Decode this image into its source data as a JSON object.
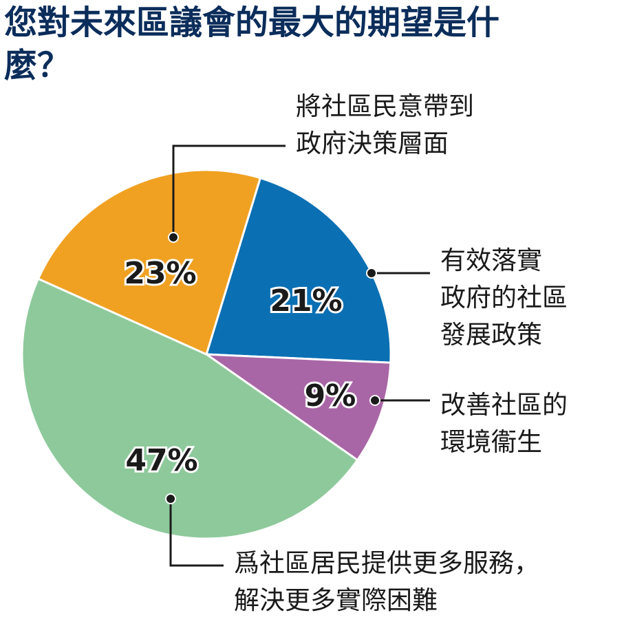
{
  "chart_data": {
    "type": "pie",
    "title": "您對未來區議會的最大的期望是什麼？",
    "categories": [
      "有效落實\n政府的社區\n發展政策",
      "改善社區的\n環境衞生",
      "爲社區居民提供更多服務，\n解決更多實際困難",
      "將社區民意帶到\n政府決策層面"
    ],
    "values": [
      21,
      9,
      47,
      23
    ],
    "value_labels": [
      "21%",
      "9%",
      "47%",
      "23%"
    ],
    "colors": [
      "#0b6fb3",
      "#a966a6",
      "#8ec99b",
      "#f0a122"
    ]
  }
}
